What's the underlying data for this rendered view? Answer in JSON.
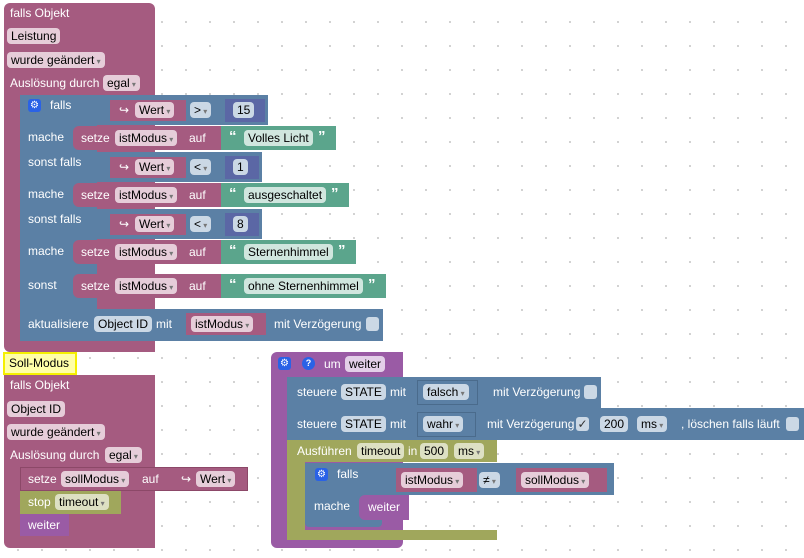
{
  "block1": {
    "header": "falls Objekt",
    "object": "Leistung",
    "trigger": "wurde geändert",
    "by_label": "Auslösung durch",
    "by_value": "egal",
    "if": {
      "falls": "falls",
      "elseif": "sonst falls",
      "do": "mache",
      "else": "sonst",
      "conds": [
        {
          "var": "Wert",
          "op": ">",
          "num": "15"
        },
        {
          "var": "Wert",
          "op": "<",
          "num": "1"
        },
        {
          "var": "Wert",
          "op": "<",
          "num": "8"
        }
      ],
      "sets": [
        {
          "setze": "setze",
          "var": "istModus",
          "auf": "auf",
          "text": "Volles Licht"
        },
        {
          "setze": "setze",
          "var": "istModus",
          "auf": "auf",
          "text": "ausgeschaltet"
        },
        {
          "setze": "setze",
          "var": "istModus",
          "auf": "auf",
          "text": "Sternenhimmel"
        },
        {
          "setze": "setze",
          "var": "istModus",
          "auf": "auf",
          "text": "ohne Sternenhimmel"
        }
      ]
    },
    "update": {
      "label": "aktualisiere",
      "object": "Object ID",
      "mit": "mit",
      "var": "istModus",
      "delay": "mit Verzögerung"
    }
  },
  "comment": "Soll-Modus",
  "block2": {
    "header": "falls Objekt",
    "object": "Object ID",
    "trigger": "wurde geändert",
    "by_label": "Auslösung durch",
    "by_value": "egal",
    "set": {
      "setze": "setze",
      "var": "sollModus",
      "auf": "auf",
      "value": "Wert"
    },
    "stop": {
      "label": "stop",
      "value": "timeout"
    },
    "call": "weiter"
  },
  "block3": {
    "um": "um",
    "name": "weiter",
    "ctrl1": {
      "label": "steuere",
      "state": "STATE",
      "mit": "mit",
      "value": "falsch",
      "delay": "mit Verzögerung"
    },
    "ctrl2": {
      "label": "steuere",
      "state": "STATE",
      "mit": "mit",
      "value": "wahr",
      "delay": "mit Verzögerung",
      "check": "✓",
      "ms_value": "200",
      "unit": "ms",
      "clear": ", löschen falls läuft"
    },
    "timeout": {
      "label": "Ausführen",
      "name": "timeout",
      "in": "in",
      "value": "500",
      "unit": "ms"
    },
    "if": {
      "falls": "falls",
      "left": "istModus",
      "op": "≠",
      "right": "sollModus",
      "do": "mache",
      "call": "weiter"
    }
  }
}
